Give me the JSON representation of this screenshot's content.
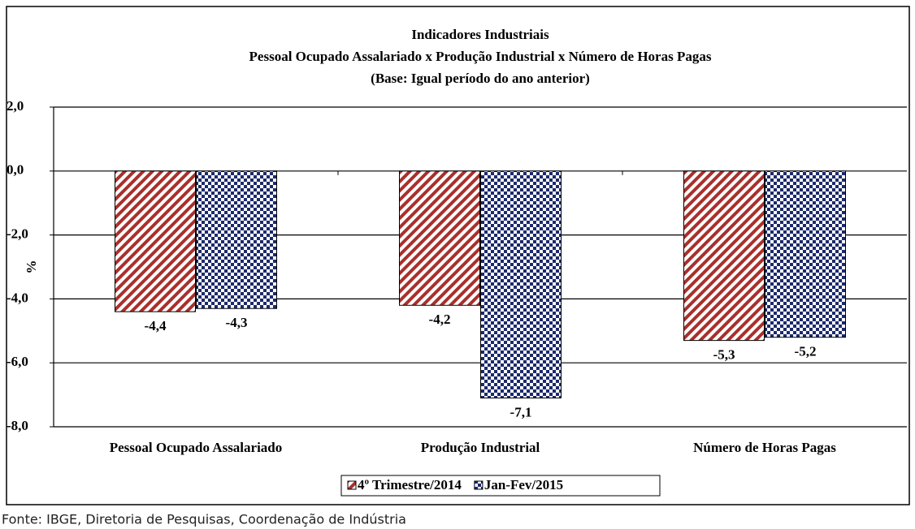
{
  "chart_data": {
    "type": "bar",
    "title": "Indicadores Industriais",
    "subtitle": [
      "Pessoal Ocupado  Assalariado x Produção Industrial x Número de Horas Pagas",
      "(Base: Igual período do ano anterior)"
    ],
    "ylabel": "%",
    "categories": [
      "Pessoal Ocupado Assalariado",
      "Produção Industrial",
      "Número de Horas Pagas"
    ],
    "series": [
      {
        "name": "4º Trimestre/2014",
        "color": "#a8302c",
        "pattern": "stripes",
        "values": [
          -4.4,
          -4.2,
          -5.3
        ],
        "value_labels": [
          "-4,4",
          "-4,2",
          "-5,3"
        ]
      },
      {
        "name": "Jan-Fev/2015",
        "color": "#1c2a6b",
        "pattern": "checker",
        "values": [
          -4.3,
          -7.1,
          -5.2
        ],
        "value_labels": [
          "-4,3",
          "-7,1",
          "-5,2"
        ]
      }
    ],
    "ylim": [
      -8,
      2
    ],
    "yticks": [
      {
        "value": -8,
        "label": "-8,0"
      },
      {
        "value": -6,
        "label": "-6,0"
      },
      {
        "value": -4,
        "label": "-4,0"
      },
      {
        "value": -2,
        "label": "-2,0"
      },
      {
        "value": 0,
        "label": "0,0"
      },
      {
        "value": 2,
        "label": "2,0"
      }
    ],
    "grid": true,
    "legend": "bottom",
    "source": "Fonte: IBGE, Diretoria de Pesquisas, Coordenação de Indústria"
  }
}
